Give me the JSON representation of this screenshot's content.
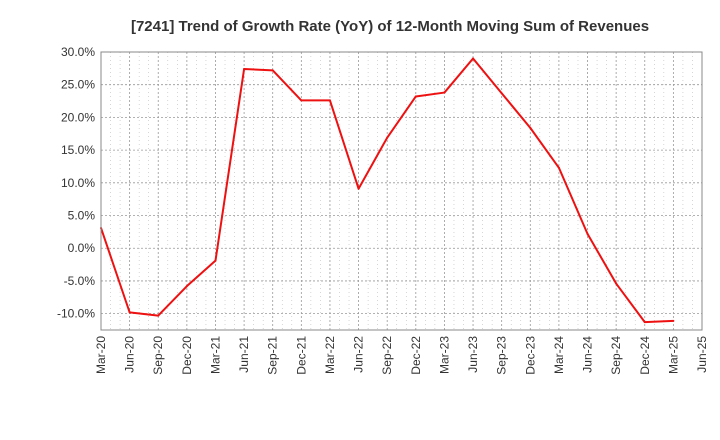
{
  "chart_data": {
    "type": "line",
    "title": "[7241]  Trend of Growth Rate (YoY) of 12-Month Moving Sum of Revenues",
    "xlabel": "",
    "ylabel": "",
    "ylim": [
      -12.5,
      30.0
    ],
    "y_ticks": [
      30.0,
      25.0,
      20.0,
      15.0,
      10.0,
      5.0,
      0.0,
      -5.0,
      -10.0
    ],
    "y_tick_labels": [
      "30.0%",
      "25.0%",
      "20.0%",
      "15.0%",
      "10.0%",
      "5.0%",
      "0.0%",
      "-5.0%",
      "-10.0%"
    ],
    "x_tick_labels": [
      "Mar-20",
      "Jun-20",
      "Sep-20",
      "Dec-20",
      "Mar-21",
      "Jun-21",
      "Sep-21",
      "Dec-21",
      "Mar-22",
      "Jun-22",
      "Sep-22",
      "Dec-22",
      "Mar-23",
      "Jun-23",
      "Sep-23",
      "Dec-23",
      "Mar-24",
      "Jun-24",
      "Sep-24",
      "Dec-24",
      "Mar-25",
      "Jun-25"
    ],
    "grid": true,
    "series": [
      {
        "color": "#ee1111",
        "x": [
          "Mar-20",
          "Jun-20",
          "Sep-20",
          "Dec-20",
          "Mar-21",
          "Jun-21",
          "Sep-21",
          "Dec-21",
          "Mar-22",
          "Jun-22",
          "Sep-22",
          "Dec-22",
          "Mar-23",
          "Jun-23",
          "Sep-23",
          "Dec-23",
          "Mar-24",
          "Jun-24",
          "Sep-24",
          "Dec-24",
          "Mar-25"
        ],
        "values": [
          3.1,
          -9.8,
          -10.3,
          -5.8,
          -1.9,
          27.4,
          27.2,
          22.6,
          22.6,
          9.1,
          16.9,
          23.2,
          23.8,
          29.0,
          23.7,
          18.4,
          12.3,
          2.2,
          -5.4,
          -11.3,
          -11.1
        ]
      }
    ]
  }
}
